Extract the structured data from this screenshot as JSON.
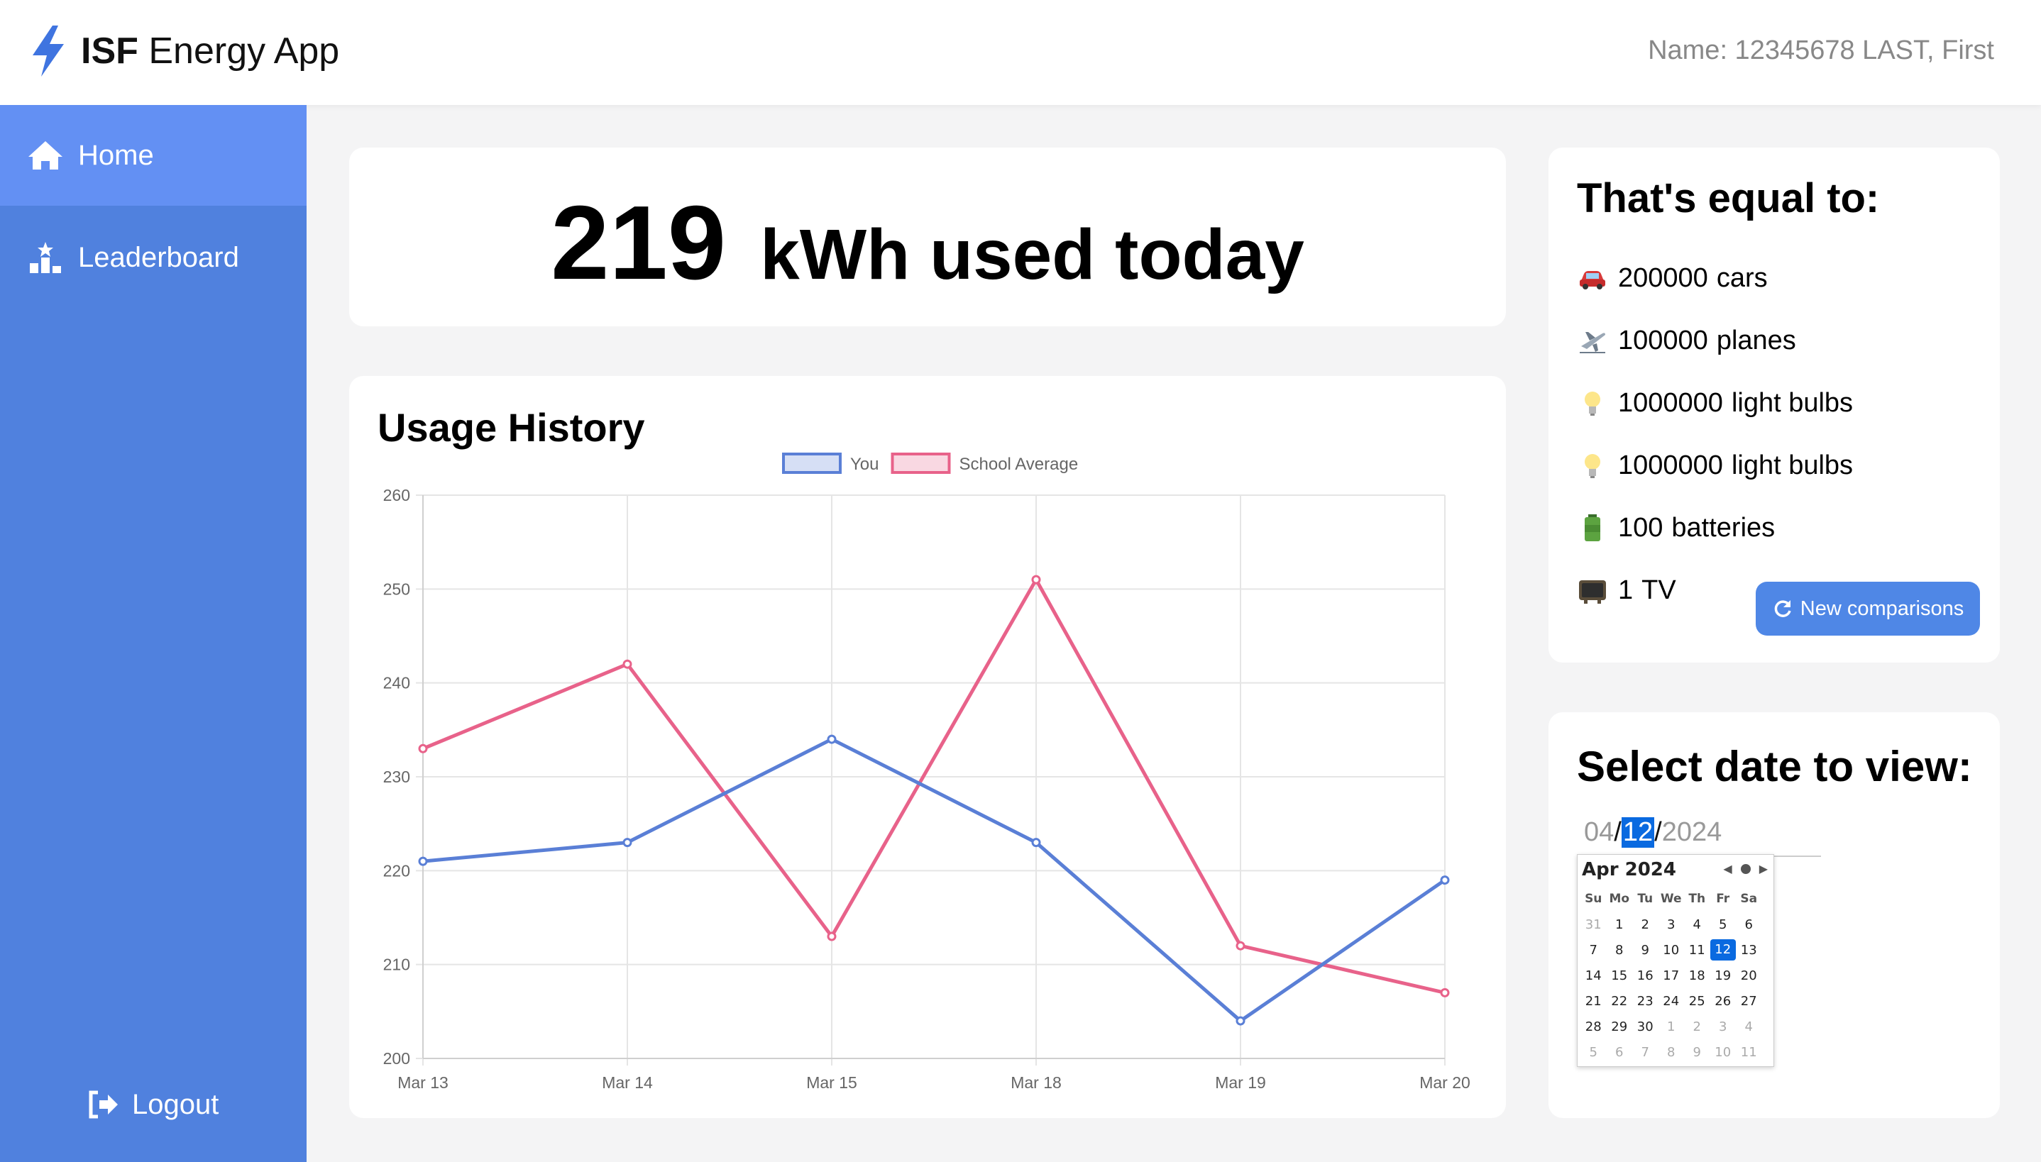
{
  "app": {
    "title_bold": "ISF",
    "title_rest": "Energy App",
    "user_name": "Name: 12345678 LAST, First"
  },
  "sidebar": {
    "items": [
      {
        "label": "Home",
        "icon": "home-icon",
        "active": true
      },
      {
        "label": "Leaderboard",
        "icon": "leaderboard-icon",
        "active": false
      }
    ],
    "logout_label": "Logout"
  },
  "usage": {
    "value": "219",
    "label": "kWh used today"
  },
  "history": {
    "title": "Usage History"
  },
  "chart_data": {
    "type": "line",
    "categories": [
      "Mar 13",
      "Mar 14",
      "Mar 15",
      "Mar 18",
      "Mar 19",
      "Mar 20"
    ],
    "series": [
      {
        "name": "You",
        "color": "#5a7fd6",
        "values": [
          221,
          223,
          234,
          223,
          204,
          219
        ]
      },
      {
        "name": "School Average",
        "color": "#e8628a",
        "values": [
          233,
          242,
          213,
          251,
          212,
          207
        ]
      }
    ],
    "ylim": [
      200,
      260
    ],
    "yticks": [
      200,
      210,
      220,
      230,
      240,
      250,
      260
    ],
    "grid": true,
    "legend": "top-center"
  },
  "comparisons": {
    "title": "That's equal to:",
    "items": [
      {
        "icon": "car-icon",
        "value": "200000",
        "label": "cars"
      },
      {
        "icon": "plane-icon",
        "value": "100000",
        "label": "planes"
      },
      {
        "icon": "lightbulb-icon",
        "value": "1000000",
        "label": "light bulbs"
      },
      {
        "icon": "lightbulb-icon",
        "value": "1000000",
        "label": "light bulbs"
      },
      {
        "icon": "battery-icon",
        "value": "100",
        "label": "batteries"
      },
      {
        "icon": "tv-icon",
        "value": "1",
        "label": "TV"
      }
    ],
    "button_label": "New comparisons"
  },
  "date_picker": {
    "title": "Select date to view:",
    "month": "04",
    "day": "12",
    "year": "2024",
    "calendar": {
      "header": "Apr 2024",
      "weekdays": [
        "Su",
        "Mo",
        "Tu",
        "We",
        "Th",
        "Fr",
        "Sa"
      ],
      "weeks": [
        [
          "31",
          "1",
          "2",
          "3",
          "4",
          "5",
          "6"
        ],
        [
          "7",
          "8",
          "9",
          "10",
          "11",
          "12",
          "13"
        ],
        [
          "14",
          "15",
          "16",
          "17",
          "18",
          "19",
          "20"
        ],
        [
          "21",
          "22",
          "23",
          "24",
          "25",
          "26",
          "27"
        ],
        [
          "28",
          "29",
          "30",
          "1",
          "2",
          "3",
          "4"
        ],
        [
          "5",
          "6",
          "7",
          "8",
          "9",
          "10",
          "11"
        ]
      ],
      "selected": "12"
    }
  }
}
